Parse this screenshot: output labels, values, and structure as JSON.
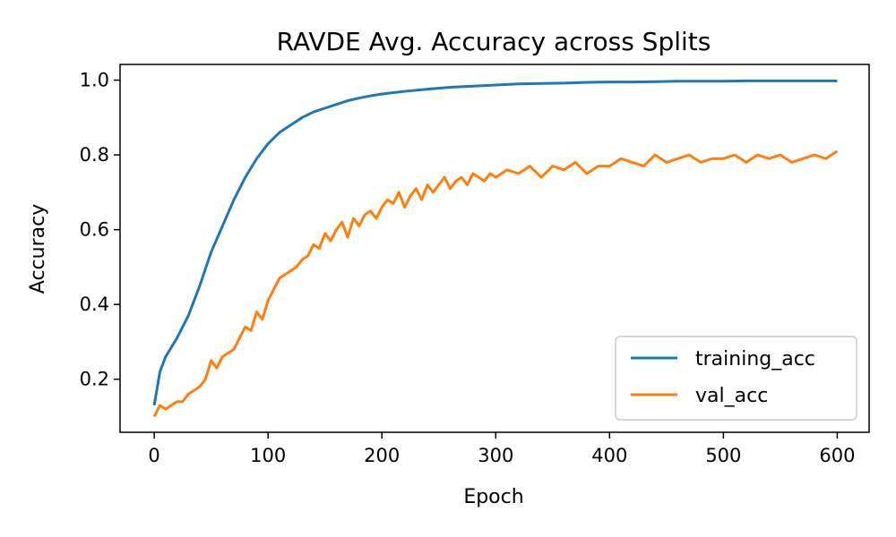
{
  "chart_data": {
    "type": "line",
    "title": "RAVDE Avg. Accuracy across Splits",
    "xlabel": "Epoch",
    "ylabel": "Accuracy",
    "xlim": [
      -30,
      628
    ],
    "ylim": [
      0.058,
      1.042
    ],
    "xticks": [
      0,
      100,
      200,
      300,
      400,
      500,
      600
    ],
    "yticks": [
      0.2,
      0.4,
      0.6,
      0.8,
      1.0
    ],
    "xtick_labels": [
      "0",
      "100",
      "200",
      "300",
      "400",
      "500",
      "600"
    ],
    "ytick_labels": [
      "0.2",
      "0.4",
      "0.6",
      "0.8",
      "1.0"
    ],
    "grid": false,
    "legend_position": "lower-right",
    "series": [
      {
        "name": "training_acc",
        "color": "#1f77b4",
        "x": [
          0,
          5,
          10,
          20,
          30,
          40,
          50,
          60,
          70,
          80,
          90,
          100,
          110,
          120,
          130,
          140,
          150,
          160,
          170,
          180,
          190,
          200,
          220,
          240,
          260,
          280,
          300,
          320,
          340,
          360,
          380,
          400,
          420,
          440,
          460,
          480,
          500,
          520,
          540,
          560,
          580,
          600
        ],
        "y": [
          0.13,
          0.22,
          0.26,
          0.31,
          0.37,
          0.45,
          0.54,
          0.61,
          0.68,
          0.74,
          0.79,
          0.83,
          0.86,
          0.88,
          0.9,
          0.915,
          0.925,
          0.935,
          0.945,
          0.952,
          0.958,
          0.963,
          0.97,
          0.976,
          0.981,
          0.984,
          0.987,
          0.99,
          0.991,
          0.992,
          0.994,
          0.995,
          0.995,
          0.996,
          0.997,
          0.997,
          0.997,
          0.998,
          0.998,
          0.998,
          0.998,
          0.998
        ]
      },
      {
        "name": "val_acc",
        "color": "#ff7f0e",
        "x": [
          0,
          5,
          10,
          15,
          20,
          25,
          30,
          35,
          40,
          45,
          50,
          55,
          60,
          65,
          70,
          75,
          80,
          85,
          90,
          95,
          100,
          105,
          110,
          115,
          120,
          125,
          130,
          135,
          140,
          145,
          150,
          155,
          160,
          165,
          170,
          175,
          180,
          185,
          190,
          195,
          200,
          205,
          210,
          215,
          220,
          225,
          230,
          235,
          240,
          245,
          250,
          255,
          260,
          265,
          270,
          275,
          280,
          285,
          290,
          295,
          300,
          310,
          320,
          330,
          340,
          350,
          360,
          370,
          380,
          390,
          400,
          410,
          420,
          430,
          440,
          450,
          460,
          470,
          480,
          490,
          500,
          510,
          520,
          530,
          540,
          550,
          560,
          570,
          580,
          590,
          600
        ],
        "y": [
          0.1,
          0.13,
          0.12,
          0.13,
          0.14,
          0.14,
          0.16,
          0.17,
          0.18,
          0.2,
          0.25,
          0.23,
          0.26,
          0.27,
          0.28,
          0.31,
          0.34,
          0.33,
          0.38,
          0.36,
          0.41,
          0.44,
          0.47,
          0.48,
          0.49,
          0.5,
          0.52,
          0.53,
          0.56,
          0.55,
          0.59,
          0.57,
          0.6,
          0.62,
          0.58,
          0.63,
          0.61,
          0.64,
          0.65,
          0.63,
          0.66,
          0.68,
          0.67,
          0.7,
          0.66,
          0.69,
          0.71,
          0.68,
          0.72,
          0.7,
          0.72,
          0.74,
          0.71,
          0.73,
          0.74,
          0.72,
          0.75,
          0.74,
          0.73,
          0.75,
          0.74,
          0.76,
          0.75,
          0.77,
          0.74,
          0.77,
          0.76,
          0.78,
          0.75,
          0.77,
          0.77,
          0.79,
          0.78,
          0.77,
          0.8,
          0.78,
          0.79,
          0.8,
          0.78,
          0.79,
          0.79,
          0.8,
          0.78,
          0.8,
          0.79,
          0.8,
          0.78,
          0.79,
          0.8,
          0.79,
          0.81
        ]
      }
    ]
  }
}
